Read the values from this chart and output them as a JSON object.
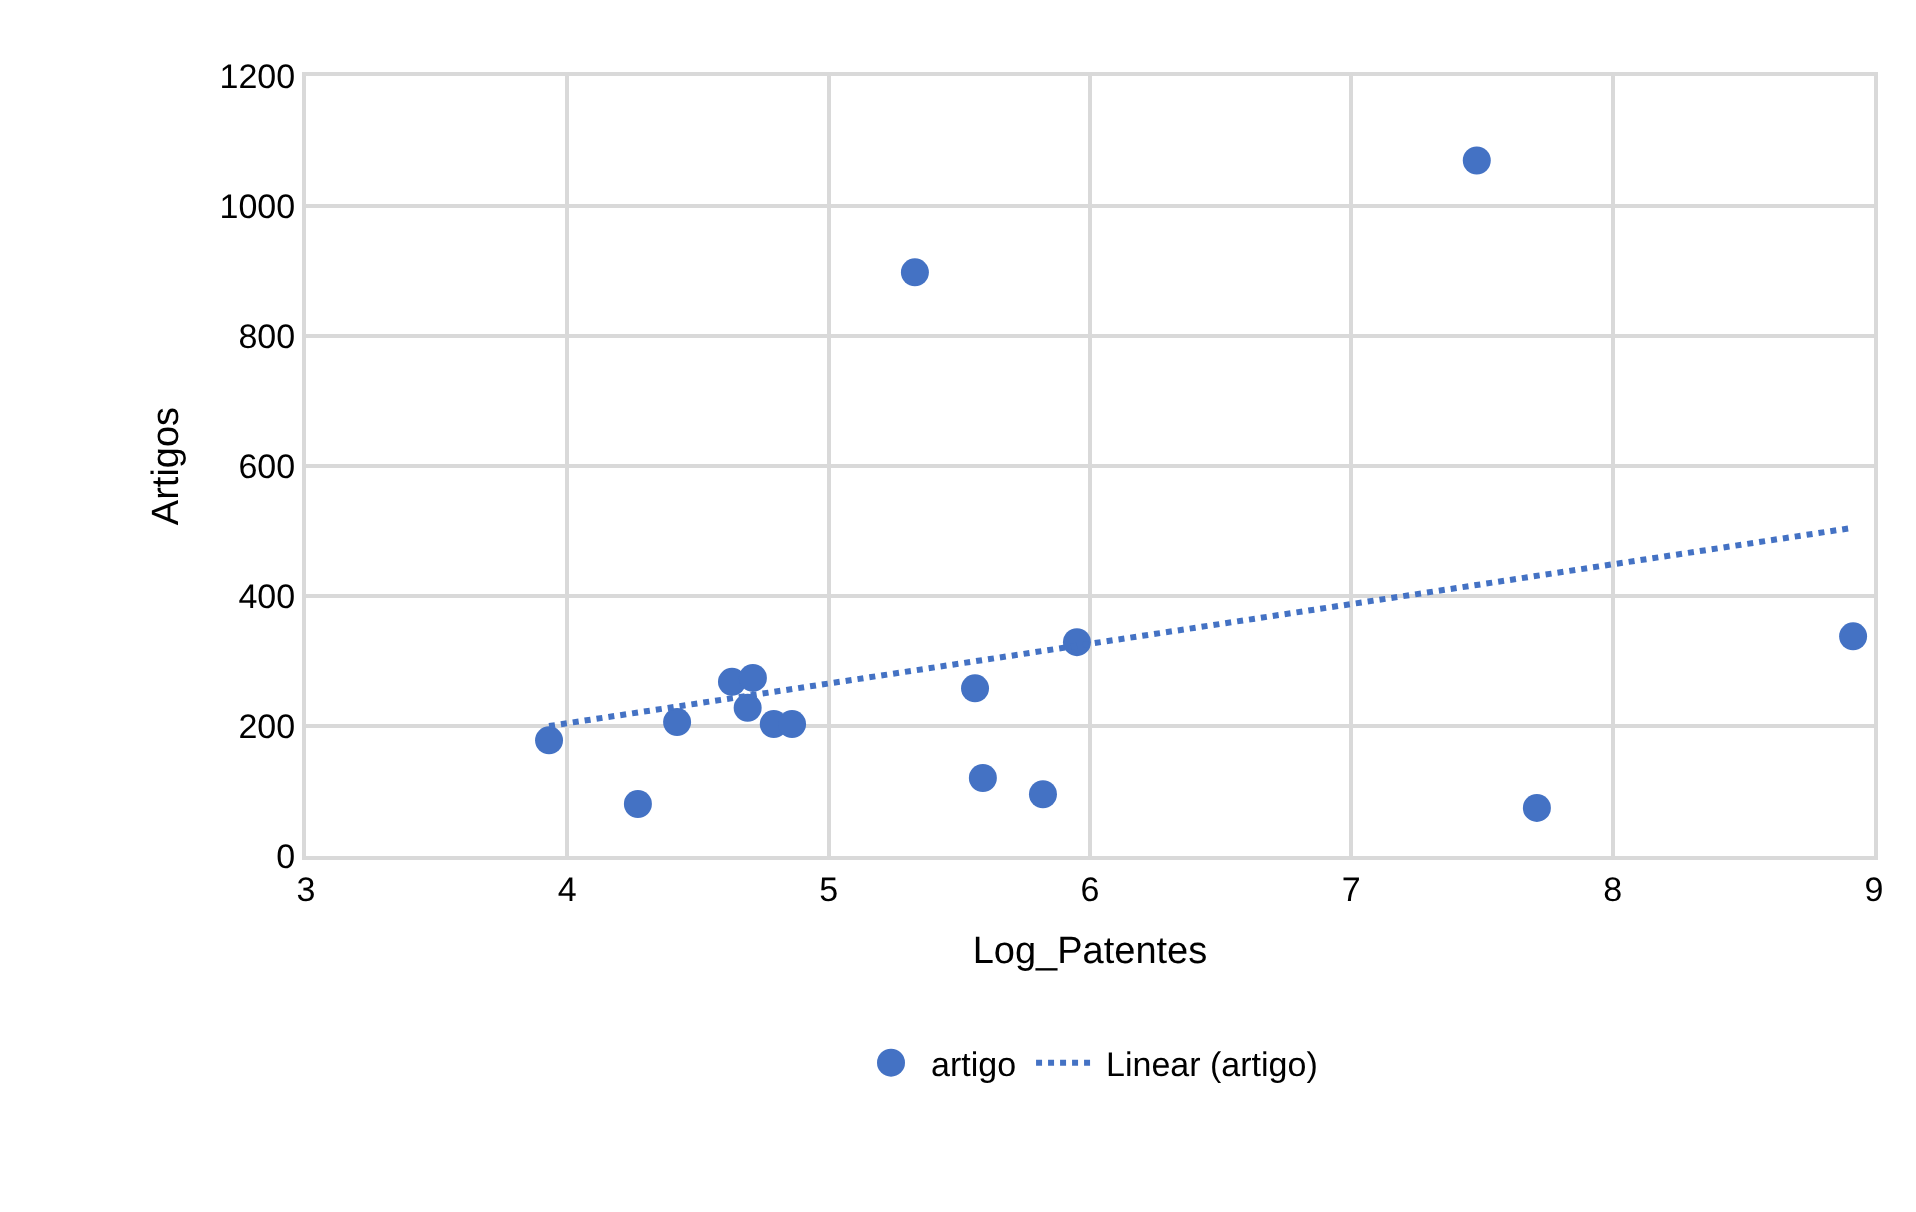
{
  "chart_data": {
    "type": "scatter",
    "xlabel": "Log_Patentes",
    "ylabel": "Artigos",
    "xlim": [
      3,
      9
    ],
    "xticks": [
      3,
      4,
      5,
      6,
      7,
      8,
      9
    ],
    "ylim": [
      0,
      1200
    ],
    "yticks": [
      0,
      200,
      400,
      600,
      800,
      1000,
      1200
    ],
    "grid": true,
    "legend": "bottom",
    "series": [
      {
        "name": "artigo",
        "marker": "circle",
        "color": "#4472c4",
        "x": [
          3.93,
          4.27,
          4.42,
          4.63,
          4.71,
          4.69,
          4.79,
          4.86,
          5.33,
          5.56,
          5.59,
          5.82,
          5.95,
          7.48,
          7.71,
          8.92
        ],
        "values": [
          178,
          80,
          206,
          268,
          274,
          228,
          203,
          203,
          898,
          258,
          120,
          95,
          329,
          1070,
          74,
          338
        ]
      },
      {
        "name": "Linear (artigo)",
        "type": "line",
        "marker": "none",
        "line_style": "dotted",
        "color": "#4472c4",
        "x": [
          3.93,
          8.92
        ],
        "values": [
          200,
          505
        ]
      }
    ]
  }
}
